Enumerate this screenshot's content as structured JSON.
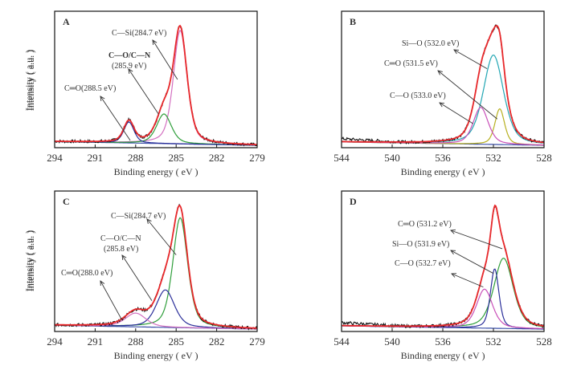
{
  "colors": {
    "raw": "#111111",
    "envelope": "#e8282b",
    "background": "#3a4fa8",
    "pink": "#d36fc0",
    "green": "#2e9e3a",
    "blue": "#2b2f9a",
    "cyan": "#22a6b3",
    "magenta": "#c94fb8",
    "olive": "#b7b020",
    "arrow": "#333333"
  },
  "chart_data": [
    {
      "panel": "A",
      "type": "line",
      "title": "",
      "xlabel": "Binding  energy ( eV )",
      "ylabel": "Intensity ( a.u. )",
      "xlim": [
        294,
        279
      ],
      "x_reversed": true,
      "xticks": [
        294,
        291,
        288,
        285,
        282,
        279
      ],
      "ylim": [
        0,
        1.0
      ],
      "yticks": [],
      "grid": false,
      "baseline": 0.0,
      "components": [
        {
          "name": "C—Si",
          "label": "C—Si(284.7 eV)",
          "center": 284.7,
          "height": 0.92,
          "fwhm": 1.2,
          "color_key": "pink"
        },
        {
          "name": "C—O/C—N",
          "label_line1": "C—O/C—N",
          "label_line2": "(285.9 eV)",
          "center": 285.9,
          "height": 0.24,
          "fwhm": 1.3,
          "color_key": "green"
        },
        {
          "name": "C=O",
          "label": "C═O(288.5 eV)",
          "center": 288.5,
          "height": 0.17,
          "fwhm": 0.9,
          "color_key": "blue"
        }
      ],
      "envelope_peak": 1.0,
      "annotations": [
        {
          "text": "C—Si(284.7 eV)",
          "arrow_to_x": 284.9,
          "arrow_to_y": 0.55
        },
        {
          "text": "C—O/C—N (285.9 eV)",
          "arrow_to_x": 286.3,
          "arrow_to_y": 0.26
        },
        {
          "text": "C═O(288.5 eV)",
          "arrow_to_x": 288.4,
          "arrow_to_y": 0.04
        }
      ]
    },
    {
      "panel": "B",
      "type": "line",
      "title": "",
      "xlabel": "Binding  energy ( eV )",
      "ylabel": "Intensity ( a.u. )",
      "xlim": [
        544,
        528
      ],
      "x_reversed": true,
      "xticks": [
        544,
        540,
        536,
        532,
        528
      ],
      "ylim": [
        0,
        1.0
      ],
      "yticks": [],
      "grid": false,
      "baseline": 0.0,
      "components": [
        {
          "name": "Si—O",
          "label": "Si—O (532.0 eV)",
          "center": 532.0,
          "height": 0.8,
          "fwhm": 1.9,
          "color_key": "cyan"
        },
        {
          "name": "C=O",
          "label": "C═O (531.5 eV)",
          "center": 531.5,
          "height": 0.32,
          "fwhm": 0.9,
          "color_key": "olive"
        },
        {
          "name": "C—O",
          "label": "C—O (533.0 eV)",
          "center": 533.0,
          "height": 0.33,
          "fwhm": 1.4,
          "color_key": "magenta"
        }
      ],
      "envelope_peak": 1.0,
      "annotations": [
        {
          "text": "Si—O (532.0 eV)",
          "arrow_to_x": 532.5,
          "arrow_to_y": 0.64
        },
        {
          "text": "C═O (531.5 eV)",
          "arrow_to_x": 531.7,
          "arrow_to_y": 0.22
        },
        {
          "text": "C—O (533.0 eV)",
          "arrow_to_x": 533.6,
          "arrow_to_y": 0.18
        }
      ]
    },
    {
      "panel": "C",
      "type": "line",
      "title": "",
      "xlabel": "Binding  energy ( eV )",
      "ylabel": "Intensity ( a.u. )",
      "xlim": [
        294,
        279
      ],
      "x_reversed": true,
      "xticks": [
        294,
        291,
        288,
        285,
        282,
        279
      ],
      "ylim": [
        0,
        1.0
      ],
      "yticks": [],
      "grid": false,
      "baseline": 0.0,
      "components": [
        {
          "name": "C—Si",
          "label": "C—Si(284.7 eV)",
          "center": 284.7,
          "height": 0.88,
          "fwhm": 1.3,
          "color_key": "green"
        },
        {
          "name": "C—O/C—N",
          "label_line1": "C—O/C—N",
          "label_line2": "(285.8 eV)",
          "center": 285.8,
          "height": 0.3,
          "fwhm": 1.6,
          "color_key": "blue"
        },
        {
          "name": "C=O",
          "label": "C═O(288.0 eV)",
          "center": 288.0,
          "height": 0.11,
          "fwhm": 1.8,
          "color_key": "pink"
        }
      ],
      "envelope_peak": 1.0,
      "annotations": [
        {
          "text": "C—Si(284.7 eV)",
          "arrow_to_x": 285.0,
          "arrow_to_y": 0.6
        },
        {
          "text": "C—O/C—N (285.8 eV)",
          "arrow_to_x": 286.8,
          "arrow_to_y": 0.23
        },
        {
          "text": "C═O(288.0 eV)",
          "arrow_to_x": 289.0,
          "arrow_to_y": 0.07
        }
      ]
    },
    {
      "panel": "D",
      "type": "line",
      "title": "",
      "xlabel": "Binding  energy ( eV )",
      "ylabel": "Intensity ( a.u. )",
      "xlim": [
        544,
        528
      ],
      "x_reversed": true,
      "xticks": [
        544,
        540,
        536,
        532,
        528
      ],
      "ylim": [
        0,
        1.0
      ],
      "yticks": [],
      "grid": false,
      "baseline": 0.0,
      "components": [
        {
          "name": "C=O",
          "label": "C═O (531.2 eV)",
          "center": 531.2,
          "height": 0.65,
          "fwhm": 1.8,
          "color_key": "green"
        },
        {
          "name": "Si—O",
          "label": "Si—O (531.9 eV)",
          "center": 531.9,
          "height": 0.55,
          "fwhm": 0.8,
          "color_key": "blue"
        },
        {
          "name": "C—O",
          "label": "C—O (532.7 eV)",
          "center": 532.7,
          "height": 0.36,
          "fwhm": 1.5,
          "color_key": "magenta"
        }
      ],
      "envelope_peak": 1.0,
      "annotations": [
        {
          "text": "C═O (531.2 eV)",
          "arrow_to_x": 531.3,
          "arrow_to_y": 0.65
        },
        {
          "text": "Si—O (531.9 eV)",
          "arrow_to_x": 532.0,
          "arrow_to_y": 0.45
        },
        {
          "text": "C—O (532.7 eV)",
          "arrow_to_x": 532.8,
          "arrow_to_y": 0.34
        }
      ]
    }
  ]
}
